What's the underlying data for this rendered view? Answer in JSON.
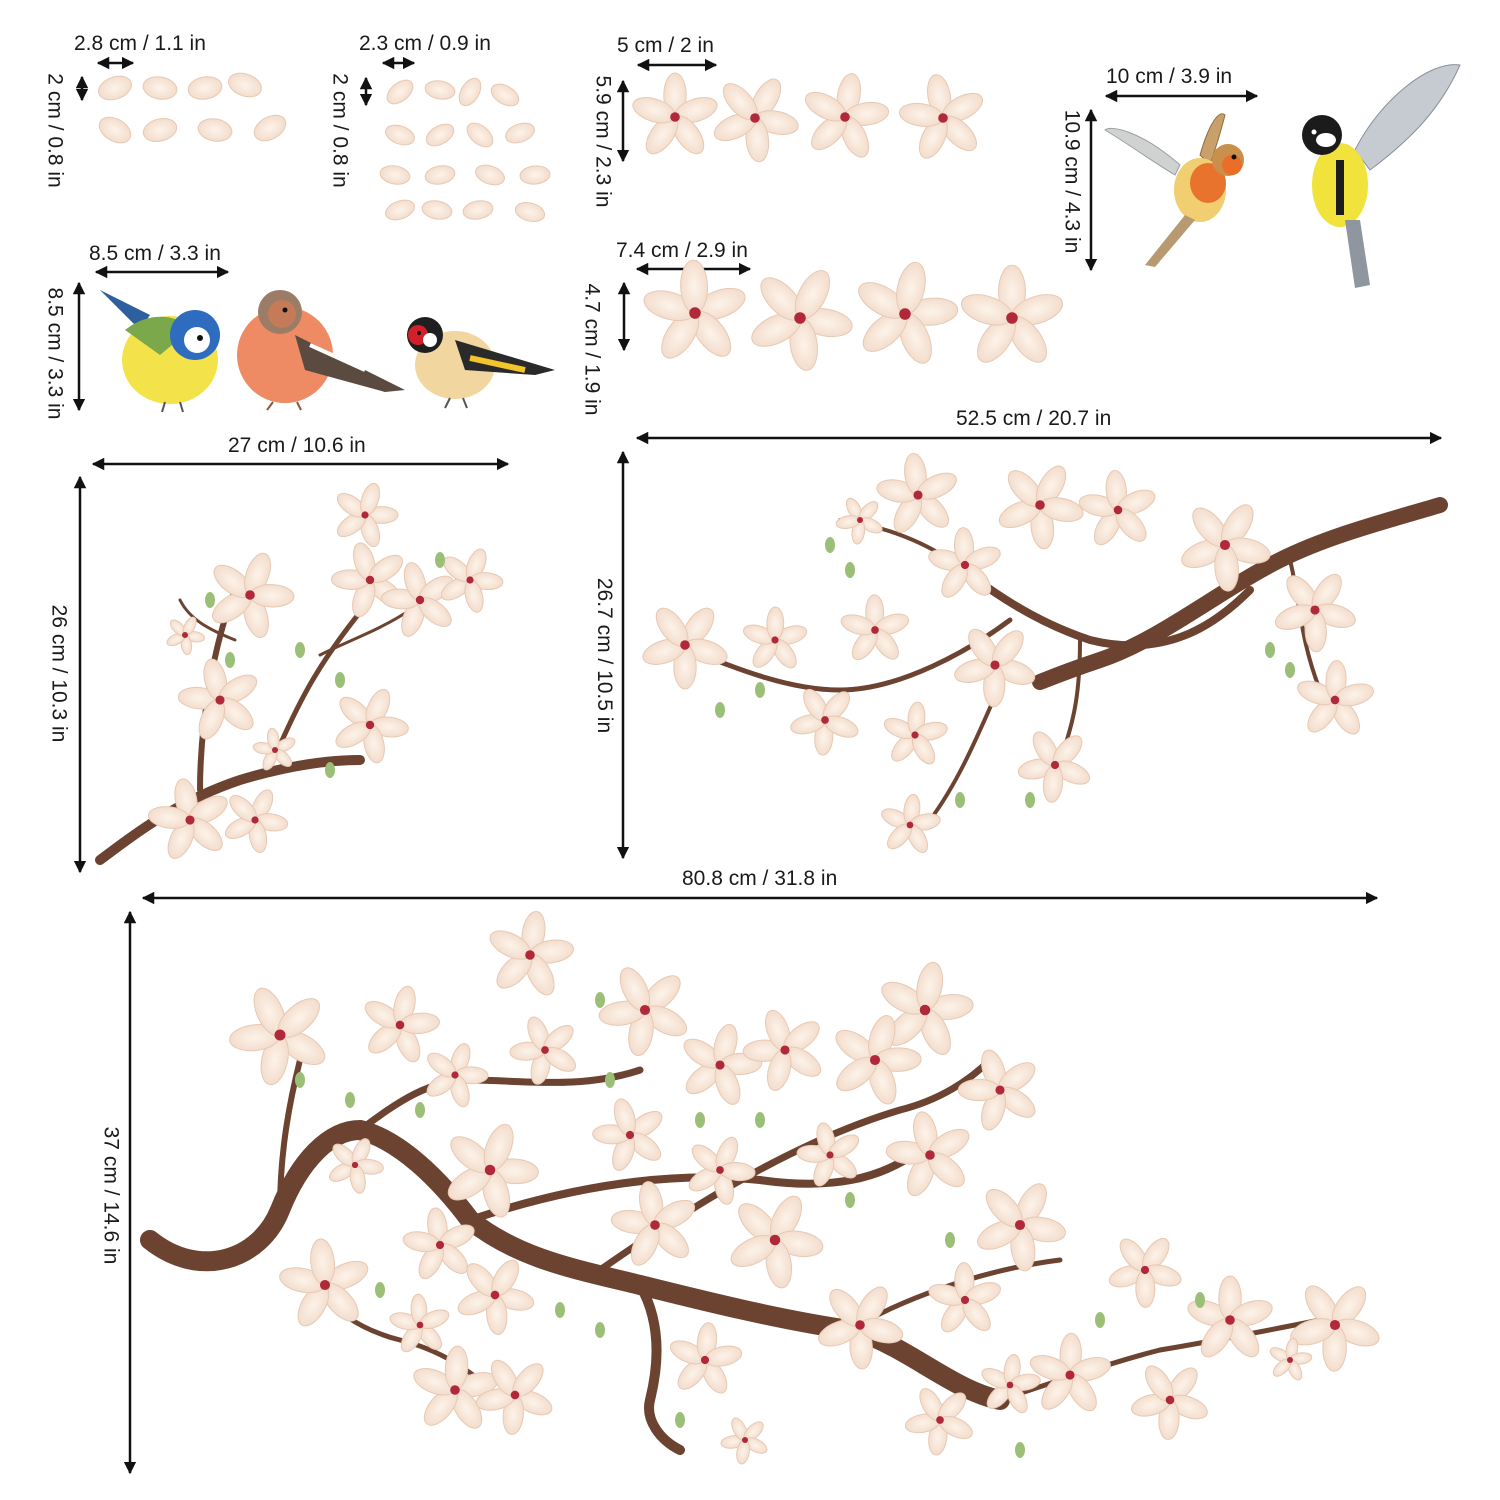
{
  "dimensions": {
    "petal_a_width": "2.8 cm / 1.1 in",
    "petal_a_height": "2 cm / 0.8 in",
    "petal_b_width": "2.3 cm / 0.9 in",
    "petal_b_height": "2 cm / 0.8 in",
    "flower_small_width": "5 cm / 2 in",
    "flower_small_height": "5.9 cm / 2.3 in",
    "flying_birds_width": "10 cm / 3.9 in",
    "flying_birds_height": "10.9 cm / 4.3 in",
    "perched_birds_width": "8.5 cm / 3.3 in",
    "perched_birds_height": "8.5 cm / 3.3 in",
    "flower_medium_width": "7.4 cm / 2.9 in",
    "flower_medium_height": "4.7 cm / 1.9 in",
    "branch_medium_width": "52.5 cm / 20.7 in",
    "branch_medium_height": "26.7 cm / 10.5 in",
    "branch_small_width": "27 cm / 10.6 in",
    "branch_small_height": "26 cm / 10.3 in",
    "branch_large_width": "80.8 cm / 31.8 in",
    "branch_large_height": "37 cm / 14.6 in"
  },
  "colors": {
    "petal": "#f8e6d8",
    "petal_edge": "#e7c9b4",
    "flower_center": "#b0283a",
    "branch": "#6b4330",
    "leaf": "#9cbf78",
    "arrow": "#111111"
  }
}
